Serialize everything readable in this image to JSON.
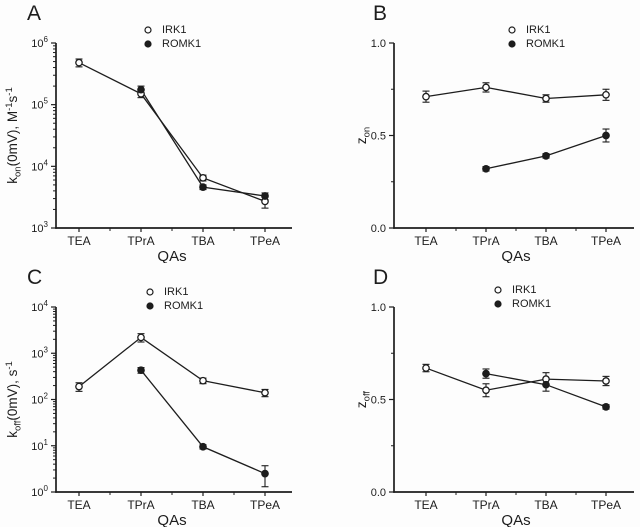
{
  "colors": {
    "ink": "#1d1d1d",
    "background": "#fdfdfd",
    "marker_open_fill": "#ffffff"
  },
  "legend": {
    "items": [
      "IRK1",
      "ROMK1"
    ]
  },
  "chart_data": [
    {
      "panel": "A",
      "type": "line",
      "y_scale": "log",
      "y_tick_exponents": [
        3,
        4,
        5,
        6
      ],
      "ylabel": "k_on(0mV), M^-1s^-1",
      "ylabel_parts": [
        {
          "t": "k"
        },
        {
          "t": "on",
          "style": "sub"
        },
        {
          "t": "(0mV), M"
        },
        {
          "t": "-1",
          "style": "sup"
        },
        {
          "t": "s"
        },
        {
          "t": "-1",
          "style": "sup"
        }
      ],
      "xlabel": "QAs",
      "categories": [
        "TEA",
        "TPrA",
        "TBA",
        "TPeA"
      ],
      "legend_position": "top-center",
      "series": [
        {
          "name": "IRK1",
          "marker": "open-circle",
          "values": [
            480000,
            150000,
            6500,
            2700
          ],
          "err": [
            70000,
            20000,
            700,
            600
          ]
        },
        {
          "name": "ROMK1",
          "marker": "filled-circle",
          "values": [
            null,
            175000,
            4600,
            3300
          ],
          "err": [
            null,
            25000,
            400,
            400
          ]
        }
      ]
    },
    {
      "panel": "B",
      "type": "line",
      "y_scale": "linear",
      "ylim": [
        0.0,
        1.0
      ],
      "y_ticks": [
        0.0,
        0.5,
        1.0
      ],
      "y_minor_ticks": [
        0.25,
        0.75
      ],
      "ylabel": "z_on",
      "ylabel_parts": [
        {
          "t": "z"
        },
        {
          "t": "on",
          "style": "sub"
        }
      ],
      "xlabel": "QAs",
      "categories": [
        "TEA",
        "TPrA",
        "TBA",
        "TPeA"
      ],
      "legend_position": "top-center",
      "series": [
        {
          "name": "IRK1",
          "marker": "open-circle",
          "values": [
            0.71,
            0.76,
            0.7,
            0.72
          ],
          "err": [
            0.03,
            0.025,
            0.02,
            0.03
          ]
        },
        {
          "name": "ROMK1",
          "marker": "filled-circle",
          "values": [
            null,
            0.32,
            0.39,
            0.5
          ],
          "err": [
            null,
            0.012,
            0.012,
            0.035
          ]
        }
      ]
    },
    {
      "panel": "C",
      "type": "line",
      "y_scale": "log",
      "y_tick_exponents": [
        0,
        1,
        2,
        3,
        4
      ],
      "ylabel": "k_off(0mV), s^-1",
      "ylabel_parts": [
        {
          "t": "k"
        },
        {
          "t": "off",
          "style": "sub"
        },
        {
          "t": "(0mV), s"
        },
        {
          "t": "-1",
          "style": "sup"
        }
      ],
      "xlabel": "QAs",
      "categories": [
        "TEA",
        "TPrA",
        "TBA",
        "TPeA"
      ],
      "legend_position": "top-center",
      "series": [
        {
          "name": "IRK1",
          "marker": "open-circle",
          "values": [
            190,
            2200,
            255,
            140
          ],
          "err": [
            40,
            450,
            35,
            25
          ]
        },
        {
          "name": "ROMK1",
          "marker": "filled-circle",
          "values": [
            null,
            430,
            9.5,
            2.5
          ],
          "err": [
            null,
            60,
            1,
            1.2
          ]
        }
      ]
    },
    {
      "panel": "D",
      "type": "line",
      "y_scale": "linear",
      "ylim": [
        0.0,
        1.0
      ],
      "y_ticks": [
        0.0,
        0.5,
        1.0
      ],
      "y_minor_ticks": [
        0.25,
        0.75
      ],
      "ylabel": "z_off",
      "ylabel_parts": [
        {
          "t": "z"
        },
        {
          "t": "off",
          "style": "sub"
        }
      ],
      "xlabel": "QAs",
      "categories": [
        "TEA",
        "TPrA",
        "TBA",
        "TPeA"
      ],
      "legend_position": "top-center",
      "series": [
        {
          "name": "IRK1",
          "marker": "open-circle",
          "values": [
            0.67,
            0.55,
            0.61,
            0.6
          ],
          "err": [
            0.02,
            0.035,
            0.035,
            0.025
          ]
        },
        {
          "name": "ROMK1",
          "marker": "filled-circle",
          "values": [
            null,
            0.64,
            0.58,
            0.46
          ],
          "err": [
            null,
            0.025,
            0.035,
            0.012
          ]
        }
      ]
    }
  ]
}
